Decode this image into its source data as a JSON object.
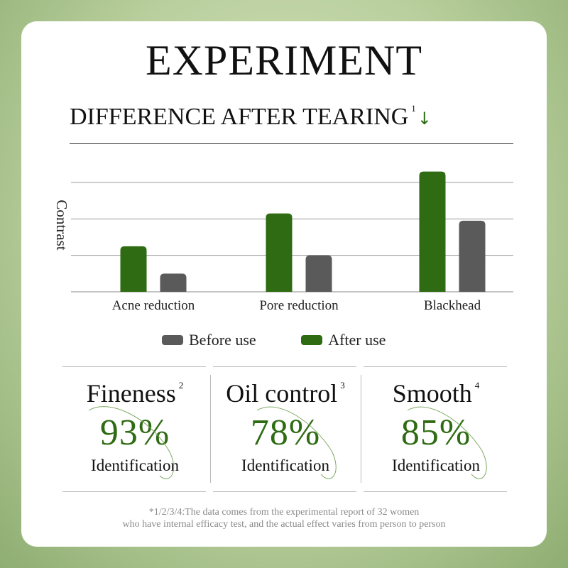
{
  "header": {
    "title": "EXPERIMENT",
    "subtitle": "DIFFERENCE AFTER TEARING",
    "subtitle_note": "1",
    "subtitle_icon": "down-arrow-icon"
  },
  "chart_data": {
    "type": "bar",
    "ylabel": "Contrast",
    "xlabel": "",
    "categories": [
      "Acne reduction",
      "Pore reduction",
      "Blackhead"
    ],
    "series": [
      {
        "name": "After use",
        "color": "#2e6b12",
        "values": [
          1.25,
          2.15,
          3.3
        ]
      },
      {
        "name": "Before use",
        "color": "#5a5a5a",
        "values": [
          0.5,
          1.0,
          1.95
        ]
      }
    ],
    "ylim": [
      0,
      3.3
    ],
    "gridlines": [
      0,
      1,
      2,
      3
    ],
    "grid": true,
    "legend_position": "bottom"
  },
  "legend": [
    {
      "label": "Before use",
      "color": "#5a5a5a"
    },
    {
      "label": "After use",
      "color": "#2e6b12"
    }
  ],
  "stats": [
    {
      "name": "Fineness",
      "note": "2",
      "value": "93%",
      "label": "Identification"
    },
    {
      "name": "Oil control",
      "note": "3",
      "value": "78%",
      "label": "Identification"
    },
    {
      "name": "Smooth",
      "note": "4",
      "value": "85%",
      "label": "Identification"
    }
  ],
  "footnote": {
    "line1": "*1/2/3/4:The data comes from the experimental report of 32 women",
    "line2": "who have internal efficacy test, and the actual effect varies from person to person"
  },
  "colors": {
    "accent": "#2e6b12",
    "neutral": "#5a5a5a"
  }
}
